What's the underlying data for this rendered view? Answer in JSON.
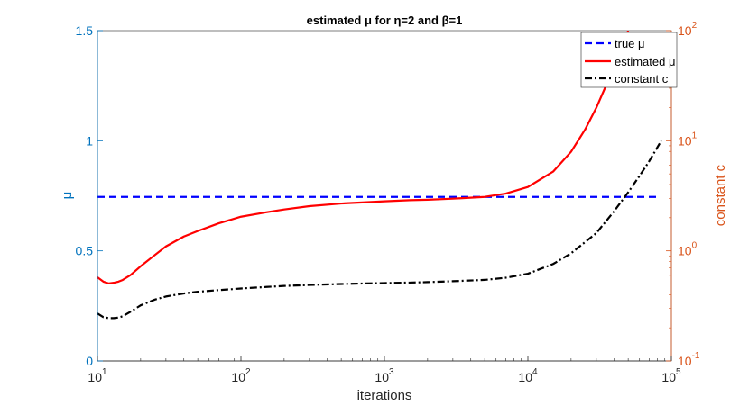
{
  "chart_data": {
    "type": "line",
    "title": "estimated μ for η=2 and β=1",
    "xlabel": "iterations",
    "ylabel_left": "μ",
    "ylabel_right": "constant c",
    "x_scale": "log",
    "xlim": [
      10,
      100000
    ],
    "ylim_left": [
      0,
      1.5
    ],
    "y_right_scale": "log",
    "ylim_right": [
      0.1,
      100
    ],
    "grid": false,
    "legend_position": "top-right",
    "x_ticks": [
      {
        "value": 10,
        "base": "10",
        "exp": "1"
      },
      {
        "value": 100,
        "base": "10",
        "exp": "2"
      },
      {
        "value": 1000,
        "base": "10",
        "exp": "3"
      },
      {
        "value": 10000,
        "base": "10",
        "exp": "4"
      },
      {
        "value": 100000,
        "base": "10",
        "exp": "5"
      }
    ],
    "y_left_ticks": [
      {
        "value": 0,
        "label": "0"
      },
      {
        "value": 0.5,
        "label": "0.5"
      },
      {
        "value": 1,
        "label": "1"
      },
      {
        "value": 1.5,
        "label": "1.5"
      }
    ],
    "y_right_ticks": [
      {
        "value": 0.1,
        "base": "10",
        "exp": "-1"
      },
      {
        "value": 1,
        "base": "10",
        "exp": "0"
      },
      {
        "value": 10,
        "base": "10",
        "exp": "1"
      },
      {
        "value": 100,
        "base": "10",
        "exp": "2"
      }
    ],
    "colors": {
      "left_axis": "#0072BD",
      "right_axis": "#D95319",
      "true_mu": "#0000FF",
      "estimated_mu": "#FF0000",
      "constant_c": "#000000"
    },
    "series": [
      {
        "name": "true μ",
        "axis": "left",
        "style": "dashed",
        "x": [
          10,
          85000
        ],
        "y": [
          0.745,
          0.745
        ]
      },
      {
        "name": "estimated μ",
        "axis": "left",
        "style": "solid",
        "x": [
          10,
          11,
          12,
          13,
          14,
          15,
          17,
          20,
          25,
          30,
          40,
          50,
          70,
          100,
          150,
          200,
          300,
          500,
          700,
          1000,
          1500,
          2000,
          3000,
          5000,
          7000,
          10000,
          15000,
          20000,
          25000,
          30000,
          35000,
          40000,
          45000,
          50000
        ],
        "y": [
          0.38,
          0.36,
          0.352,
          0.355,
          0.36,
          0.368,
          0.39,
          0.43,
          0.48,
          0.52,
          0.565,
          0.59,
          0.625,
          0.655,
          0.675,
          0.688,
          0.703,
          0.715,
          0.72,
          0.725,
          0.73,
          0.732,
          0.737,
          0.745,
          0.76,
          0.79,
          0.86,
          0.95,
          1.05,
          1.15,
          1.25,
          1.34,
          1.42,
          1.5
        ]
      },
      {
        "name": "constant c",
        "axis": "right",
        "style": "dashdot",
        "x": [
          10,
          11,
          12,
          13,
          14,
          15,
          17,
          20,
          25,
          30,
          40,
          50,
          70,
          100,
          150,
          200,
          300,
          500,
          700,
          1000,
          1500,
          2000,
          3000,
          5000,
          7000,
          10000,
          15000,
          20000,
          30000,
          40000,
          50000,
          60000,
          70000,
          85000
        ],
        "y": [
          0.27,
          0.25,
          0.245,
          0.245,
          0.248,
          0.255,
          0.28,
          0.32,
          0.36,
          0.385,
          0.41,
          0.425,
          0.44,
          0.455,
          0.47,
          0.48,
          0.49,
          0.5,
          0.505,
          0.51,
          0.515,
          0.52,
          0.53,
          0.545,
          0.57,
          0.62,
          0.76,
          0.95,
          1.45,
          2.3,
          3.4,
          4.8,
          6.5,
          10.0
        ]
      }
    ]
  }
}
